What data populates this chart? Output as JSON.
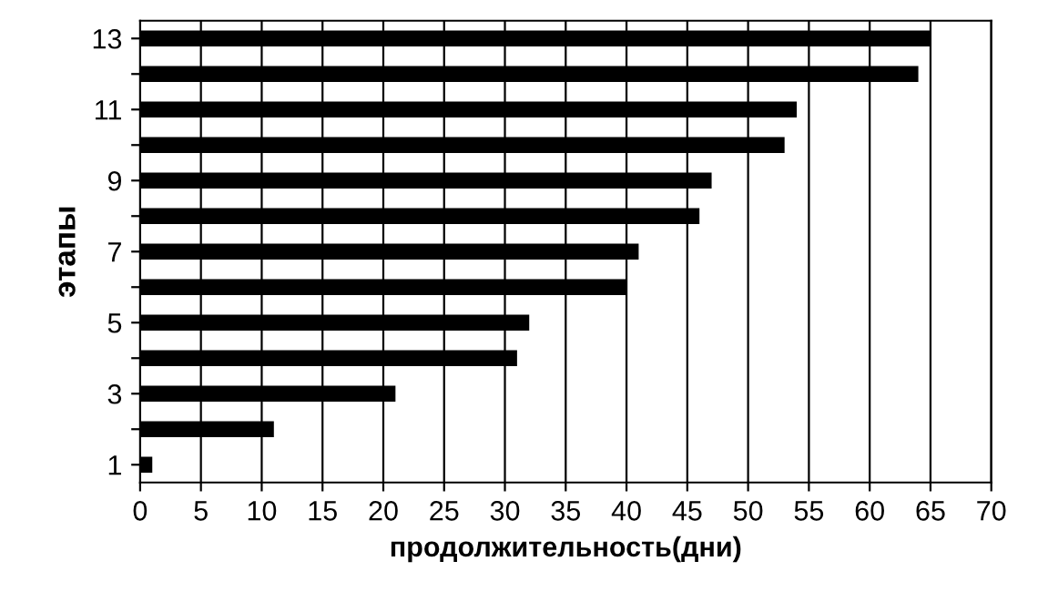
{
  "chart_data": {
    "type": "bar",
    "orientation": "horizontal",
    "xlabel": "продолжительность(дни)",
    "ylabel": "этапы",
    "categories": [
      "13",
      null,
      "11",
      null,
      "9",
      null,
      "7",
      null,
      "5",
      null,
      "3",
      null,
      "1"
    ],
    "values": [
      65,
      64,
      54,
      53,
      47,
      46,
      41,
      40,
      32,
      31,
      21,
      11,
      1
    ],
    "color": "#000000",
    "xlim": [
      0,
      70
    ],
    "xticks": [
      0,
      5,
      10,
      15,
      20,
      25,
      30,
      35,
      40,
      45,
      50,
      55,
      60,
      65,
      70
    ],
    "grid": "x",
    "legend": false
  }
}
